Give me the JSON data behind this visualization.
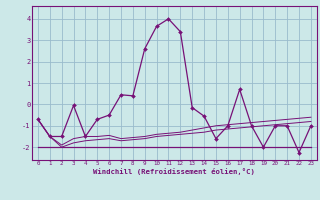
{
  "xlabel": "Windchill (Refroidissement éolien,°C)",
  "background_color": "#cce8e8",
  "grid_color": "#99bbcc",
  "line_color": "#771177",
  "x_values": [
    0,
    1,
    2,
    3,
    4,
    5,
    6,
    7,
    8,
    9,
    10,
    11,
    12,
    13,
    14,
    15,
    16,
    17,
    18,
    19,
    20,
    21,
    22,
    23
  ],
  "y_main": [
    -0.7,
    -1.5,
    -1.5,
    -0.05,
    -1.5,
    -0.7,
    -0.5,
    0.45,
    0.4,
    2.6,
    3.65,
    4.0,
    3.4,
    -0.15,
    -0.55,
    -1.6,
    -1.0,
    0.7,
    -1.0,
    -2.0,
    -1.0,
    -1.0,
    -2.25,
    -1.0
  ],
  "y_flat": [
    -2.0,
    -2.0,
    -2.0,
    -2.0,
    -2.0,
    -2.0,
    -2.0,
    -2.0,
    -2.0,
    -2.0,
    -2.0,
    -2.0,
    -2.0,
    -2.0,
    -2.0,
    -2.0,
    -2.0,
    -2.0,
    -2.0,
    -2.0,
    -2.0,
    -2.0,
    -2.0,
    -2.0
  ],
  "y_line2": [
    -0.7,
    -1.5,
    -1.9,
    -1.6,
    -1.5,
    -1.5,
    -1.45,
    -1.6,
    -1.55,
    -1.5,
    -1.4,
    -1.35,
    -1.3,
    -1.2,
    -1.1,
    -1.0,
    -0.95,
    -0.9,
    -0.85,
    -0.8,
    -0.75,
    -0.7,
    -0.65,
    -0.6
  ],
  "y_line3": [
    -0.7,
    -1.5,
    -2.0,
    -1.8,
    -1.7,
    -1.65,
    -1.6,
    -1.7,
    -1.65,
    -1.6,
    -1.5,
    -1.45,
    -1.4,
    -1.35,
    -1.3,
    -1.2,
    -1.15,
    -1.1,
    -1.05,
    -1.0,
    -0.95,
    -0.9,
    -0.85,
    -0.8
  ],
  "ylim": [
    -2.6,
    4.6
  ],
  "xlim": [
    -0.5,
    23.5
  ],
  "yticks": [
    -2,
    -1,
    0,
    1,
    2,
    3,
    4
  ],
  "xticks": [
    0,
    1,
    2,
    3,
    4,
    5,
    6,
    7,
    8,
    9,
    10,
    11,
    12,
    13,
    14,
    15,
    16,
    17,
    18,
    19,
    20,
    21,
    22,
    23
  ]
}
